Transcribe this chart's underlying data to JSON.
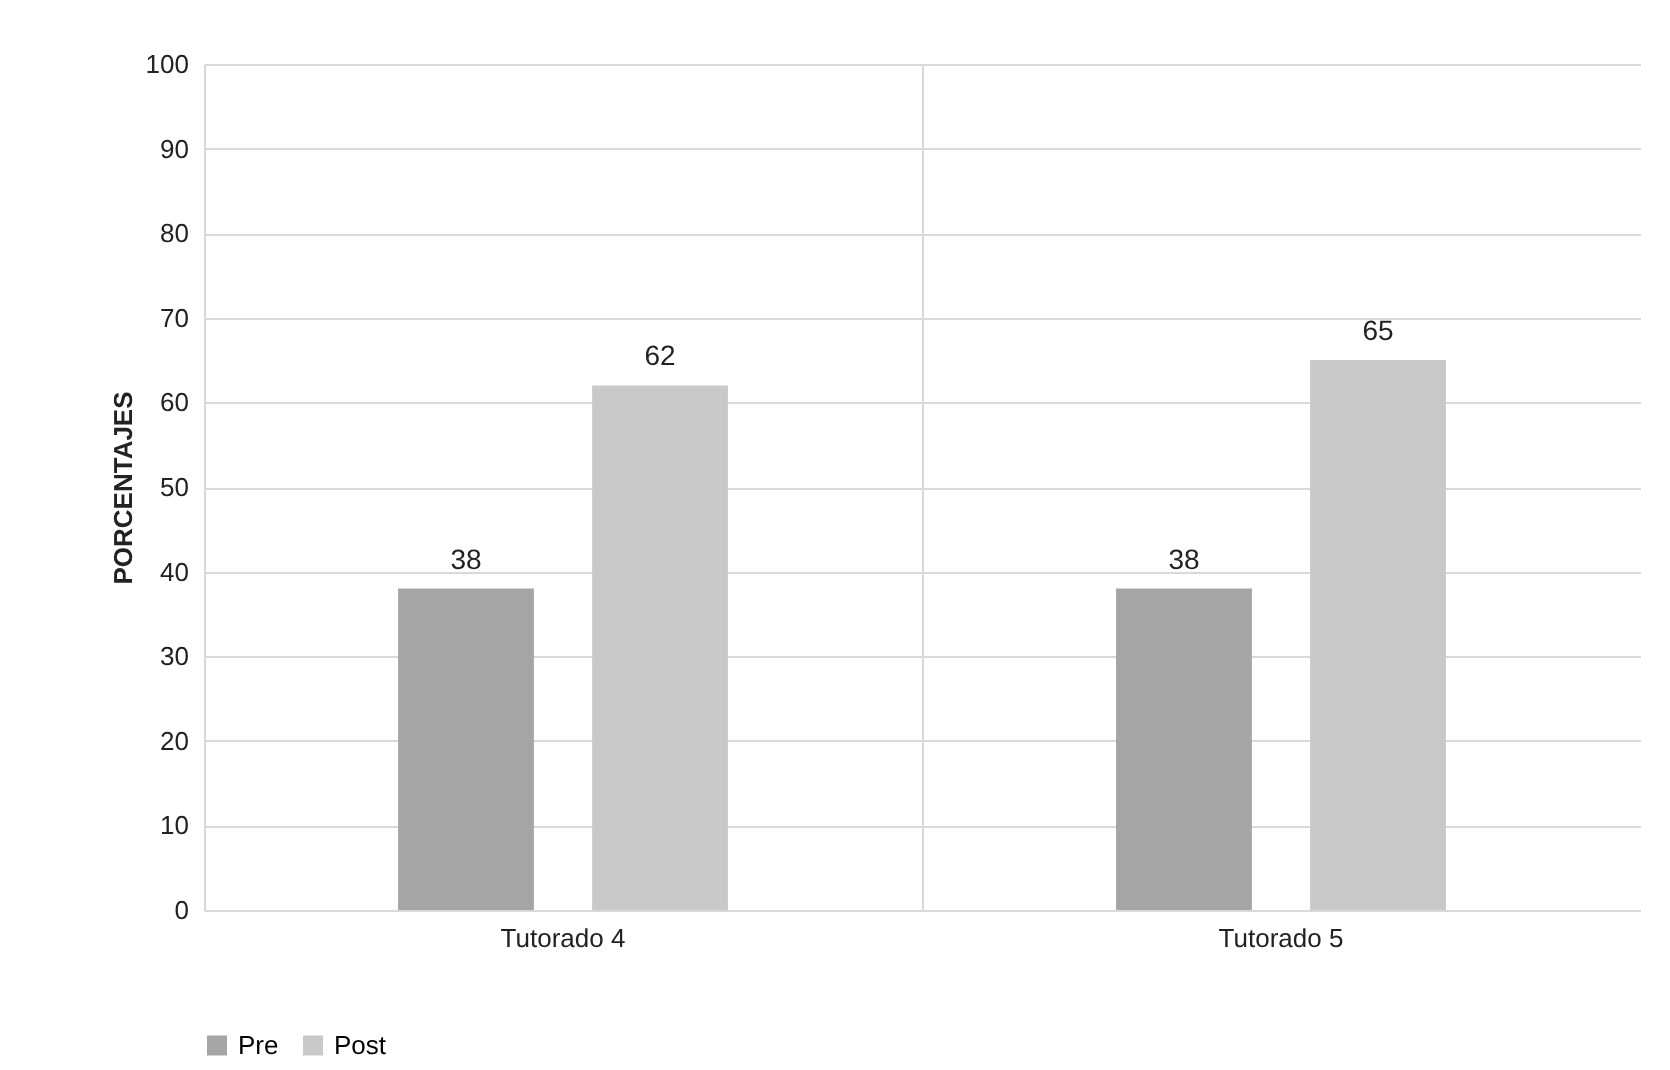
{
  "chart_data": {
    "type": "bar",
    "ylabel": "PORCENTAJES",
    "categories": [
      "Tutorado 4",
      "Tutorado 5"
    ],
    "series": [
      {
        "name": "Pre",
        "color": "#a5a5a5",
        "values": [
          38,
          38
        ]
      },
      {
        "name": "Post",
        "color": "#c9c9c9",
        "values": [
          62,
          65
        ]
      }
    ],
    "ylim": [
      0,
      100
    ],
    "yticks": [
      0,
      10,
      20,
      30,
      40,
      50,
      60,
      70,
      80,
      90,
      100
    ],
    "grid": true,
    "legend": "bottom",
    "data_labels": true
  }
}
